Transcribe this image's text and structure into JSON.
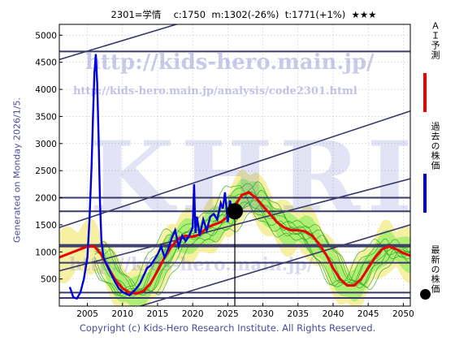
{
  "header": {
    "title": "2301=学情　 c:1750  m:1302(-26%)  t:1771(+1%)  ★★★"
  },
  "side_caption": "Generated on Monday 2026/1/5.",
  "footer": {
    "copyright": "Copyright (c) Kids-Hero Research Institute. All Rights Reserved."
  },
  "watermark": {
    "url1": "http://kids-hero.main.jp/",
    "url2": "http://kids-hero.main.jp/analysis/code2301.html",
    "big": "KHRI",
    "bottom": "http://kids-hero.main.jp/"
  },
  "legend": [
    {
      "label": "ＡＩ予測",
      "color": "#ee0000"
    },
    {
      "label": "過去の株価",
      "color": "#0000dd"
    },
    {
      "label": "最新の株価",
      "color": "#000000"
    }
  ],
  "colors": {
    "history": "#0000dd",
    "forecast": "#ee0000",
    "hline": "#3a3a6a",
    "band_green": "#99ee66",
    "band_yellow": "#f5ee99",
    "ensemble": "#33aa22"
  },
  "chart_data": {
    "type": "line",
    "xlim": [
      2001,
      2051
    ],
    "ylim": [
      0,
      5200
    ],
    "xticks": [
      2005,
      2010,
      2015,
      2020,
      2025,
      2030,
      2035,
      2040,
      2045,
      2050
    ],
    "yticks": [
      500,
      1000,
      1500,
      2000,
      2500,
      3000,
      3500,
      4000,
      4500,
      5000
    ],
    "horizontal_levels": [
      4700,
      2000,
      1750,
      1130,
      1100,
      800,
      250,
      150
    ],
    "trend_lines": [
      {
        "x": [
          2001,
          2051
        ],
        "y": [
          4550,
          6500
        ]
      },
      {
        "x": [
          2001,
          2051
        ],
        "y": [
          1450,
          3600
        ]
      },
      {
        "x": [
          2001,
          2051
        ],
        "y": [
          650,
          2350
        ]
      },
      {
        "x": [
          2001,
          2051
        ],
        "y": [
          -450,
          1500
        ]
      }
    ],
    "history": {
      "name": "過去の株価",
      "x": [
        2002.5,
        2003,
        2003.5,
        2004,
        2004.5,
        2005,
        2005.3,
        2005.6,
        2005.8,
        2006,
        2006.2,
        2006.4,
        2006.6,
        2006.8,
        2007,
        2007.3,
        2007.6,
        2008,
        2008.5,
        2009,
        2009.5,
        2010,
        2010.5,
        2011,
        2011.5,
        2012,
        2012.5,
        2013,
        2013.5,
        2014,
        2014.5,
        2015,
        2015.5,
        2016,
        2016.5,
        2017,
        2017.5,
        2018,
        2018.5,
        2019,
        2019.5,
        2020,
        2020.2,
        2020.4,
        2020.6,
        2021,
        2021.5,
        2022,
        2022.5,
        2023,
        2023.5,
        2024,
        2024.3,
        2024.6,
        2025,
        2025.3,
        2025.6,
        2025.9
      ],
      "y": [
        350,
        160,
        140,
        250,
        500,
        900,
        1600,
        2600,
        3500,
        4300,
        4650,
        4100,
        3100,
        1900,
        1200,
        900,
        800,
        700,
        560,
        430,
        320,
        260,
        230,
        200,
        260,
        330,
        420,
        560,
        700,
        750,
        850,
        950,
        1100,
        900,
        1050,
        1250,
        1400,
        1100,
        1300,
        1200,
        1300,
        1450,
        2250,
        1350,
        1650,
        1300,
        1600,
        1400,
        1650,
        1700,
        1600,
        1900,
        1800,
        2100,
        1550,
        1950,
        1800,
        1750
      ]
    },
    "forecast": {
      "name": "ＡＩ予測",
      "x": [
        2001,
        2002,
        2003,
        2004,
        2005,
        2006,
        2007,
        2008,
        2009,
        2010,
        2011,
        2012,
        2013,
        2014,
        2015,
        2016,
        2017,
        2018,
        2019,
        2020,
        2021,
        2022,
        2023,
        2024,
        2025,
        2026,
        2027,
        2028,
        2029,
        2030,
        2031,
        2032,
        2033,
        2034,
        2035,
        2036,
        2037,
        2038,
        2039,
        2040,
        2041,
        2042,
        2043,
        2044,
        2045,
        2046,
        2047,
        2048,
        2049,
        2050,
        2051
      ],
      "y": [
        900,
        950,
        1000,
        1050,
        1100,
        1100,
        950,
        700,
        480,
        330,
        250,
        230,
        280,
        420,
        650,
        900,
        1100,
        1250,
        1300,
        1280,
        1320,
        1450,
        1500,
        1550,
        1650,
        1850,
        2050,
        2100,
        2000,
        1850,
        1700,
        1550,
        1450,
        1400,
        1400,
        1380,
        1300,
        1150,
        950,
        700,
        500,
        380,
        380,
        500,
        700,
        900,
        1050,
        1100,
        1050,
        980,
        930
      ]
    },
    "latest": {
      "x": 2026,
      "y": 1750
    }
  }
}
